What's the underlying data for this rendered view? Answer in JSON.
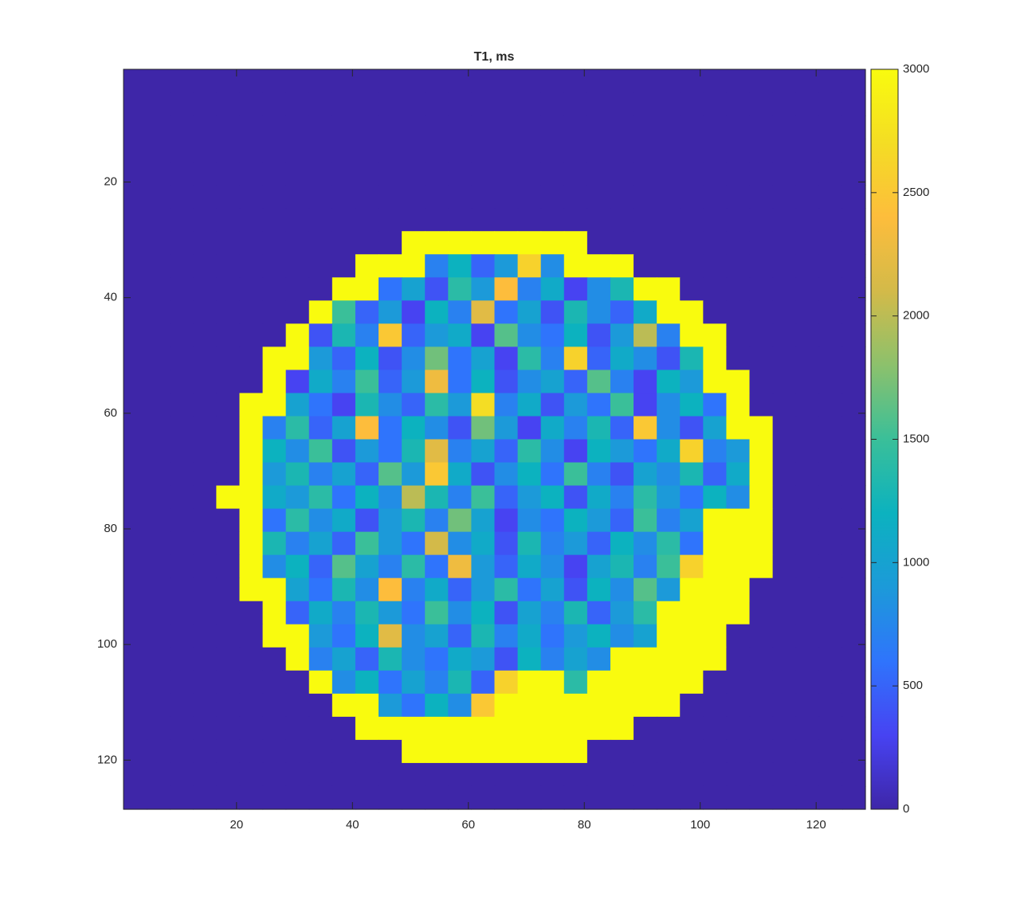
{
  "chart_data": {
    "type": "heatmap",
    "title": "T1, ms",
    "xlim": [
      0.5,
      128.5
    ],
    "ylim": [
      0.5,
      128.5
    ],
    "y_reversed": true,
    "xticks": [
      20,
      40,
      60,
      80,
      100,
      120
    ],
    "yticks": [
      20,
      40,
      60,
      80,
      100,
      120
    ],
    "clim": [
      0,
      3000
    ],
    "cticks": [
      0,
      500,
      1000,
      1500,
      2000,
      2500,
      3000
    ],
    "colormap": [
      "#3e26a8",
      "#4743f2",
      "#2f74fc",
      "#1c9ad9",
      "#0cb2bf",
      "#3abf99",
      "#8cc16c",
      "#d3ba49",
      "#fdbd3c",
      "#f4dd24",
      "#f9fb0e"
    ],
    "z": [
      [
        0,
        0,
        0,
        0,
        0,
        0,
        0,
        0,
        0,
        0,
        0,
        0,
        0,
        0,
        0,
        0,
        0,
        0,
        0,
        0,
        0,
        0,
        0,
        0,
        0,
        0,
        0,
        0,
        0,
        0,
        0,
        0
      ],
      [
        0,
        0,
        0,
        0,
        0,
        0,
        0,
        0,
        0,
        0,
        0,
        0,
        0,
        0,
        0,
        0,
        0,
        0,
        0,
        0,
        0,
        0,
        0,
        0,
        0,
        0,
        0,
        0,
        0,
        0,
        0,
        0
      ],
      [
        0,
        0,
        0,
        0,
        0,
        0,
        0,
        0,
        0,
        0,
        0,
        0,
        0,
        0,
        0,
        0,
        0,
        0,
        0,
        0,
        0,
        0,
        0,
        0,
        0,
        0,
        0,
        0,
        0,
        0,
        0,
        0
      ],
      [
        0,
        0,
        0,
        0,
        0,
        0,
        0,
        0,
        0,
        0,
        0,
        0,
        0,
        0,
        0,
        0,
        0,
        0,
        0,
        0,
        0,
        0,
        0,
        0,
        0,
        0,
        0,
        0,
        0,
        0,
        0,
        0
      ],
      [
        0,
        0,
        0,
        0,
        0,
        0,
        0,
        0,
        0,
        0,
        0,
        0,
        0,
        0,
        0,
        0,
        0,
        0,
        0,
        0,
        0,
        0,
        0,
        0,
        0,
        0,
        0,
        0,
        0,
        0,
        0,
        0
      ],
      [
        0,
        0,
        0,
        0,
        0,
        0,
        0,
        0,
        0,
        0,
        0,
        0,
        0,
        0,
        0,
        0,
        0,
        0,
        0,
        0,
        0,
        0,
        0,
        0,
        0,
        0,
        0,
        0,
        0,
        0,
        0,
        0
      ],
      [
        0,
        0,
        0,
        0,
        0,
        0,
        0,
        0,
        0,
        0,
        0,
        0,
        0,
        0,
        0,
        0,
        0,
        0,
        0,
        0,
        0,
        0,
        0,
        0,
        0,
        0,
        0,
        0,
        0,
        0,
        0,
        0
      ],
      [
        0,
        0,
        0,
        0,
        0,
        0,
        0,
        0,
        0,
        0,
        0,
        0,
        3000,
        3000,
        3000,
        3000,
        3000,
        3000,
        3000,
        3000,
        0,
        0,
        0,
        0,
        0,
        0,
        0,
        0,
        0,
        0,
        0,
        0
      ],
      [
        0,
        0,
        0,
        0,
        0,
        0,
        0,
        0,
        0,
        0,
        3000,
        3000,
        3000,
        700,
        1200,
        500,
        900,
        2600,
        800,
        3000,
        3000,
        3000,
        0,
        0,
        0,
        0,
        0,
        0,
        0,
        0,
        0,
        0
      ],
      [
        0,
        0,
        0,
        0,
        0,
        0,
        0,
        0,
        0,
        3000,
        3000,
        600,
        1000,
        400,
        1400,
        900,
        2400,
        700,
        1100,
        300,
        800,
        1300,
        3000,
        3000,
        0,
        0,
        0,
        0,
        0,
        0,
        0,
        0
      ],
      [
        0,
        0,
        0,
        0,
        0,
        0,
        0,
        0,
        3000,
        1500,
        500,
        900,
        300,
        1200,
        700,
        2200,
        600,
        1000,
        400,
        1300,
        800,
        500,
        1100,
        3000,
        3000,
        0,
        0,
        0,
        0,
        0,
        0,
        0
      ],
      [
        0,
        0,
        0,
        0,
        0,
        0,
        0,
        3000,
        400,
        1300,
        700,
        2500,
        500,
        900,
        1100,
        300,
        1600,
        800,
        600,
        1200,
        400,
        900,
        2000,
        700,
        3000,
        3000,
        0,
        0,
        0,
        0,
        0,
        0
      ],
      [
        0,
        0,
        0,
        0,
        0,
        0,
        3000,
        3000,
        900,
        500,
        1200,
        400,
        800,
        1700,
        600,
        1000,
        300,
        1400,
        700,
        2600,
        500,
        1100,
        800,
        400,
        1300,
        3000,
        0,
        0,
        0,
        0,
        0,
        0
      ],
      [
        0,
        0,
        0,
        0,
        0,
        0,
        3000,
        300,
        1100,
        700,
        1500,
        500,
        900,
        2300,
        600,
        1200,
        400,
        800,
        1000,
        500,
        1600,
        700,
        300,
        1200,
        900,
        3000,
        3000,
        0,
        0,
        0,
        0,
        0
      ],
      [
        0,
        0,
        0,
        0,
        0,
        3000,
        3000,
        1000,
        600,
        300,
        1300,
        800,
        500,
        1400,
        900,
        2700,
        700,
        1100,
        400,
        900,
        600,
        1500,
        300,
        800,
        1200,
        600,
        3000,
        0,
        0,
        0,
        0,
        0
      ],
      [
        0,
        0,
        0,
        0,
        0,
        3000,
        700,
        1400,
        500,
        1000,
        2400,
        600,
        1200,
        800,
        400,
        1700,
        900,
        300,
        1100,
        700,
        1300,
        500,
        2500,
        800,
        400,
        1000,
        3000,
        3000,
        0,
        0,
        0,
        0
      ],
      [
        0,
        0,
        0,
        0,
        0,
        3000,
        1200,
        800,
        1500,
        400,
        900,
        600,
        1300,
        2200,
        700,
        1000,
        500,
        1400,
        800,
        300,
        1200,
        900,
        600,
        1100,
        2600,
        700,
        900,
        3000,
        0,
        0,
        0,
        0
      ],
      [
        0,
        0,
        0,
        0,
        0,
        3000,
        900,
        1300,
        700,
        1000,
        500,
        1600,
        900,
        2500,
        1100,
        400,
        800,
        1200,
        600,
        1500,
        700,
        400,
        1000,
        800,
        1300,
        500,
        1100,
        3000,
        0,
        0,
        0,
        0
      ],
      [
        0,
        0,
        0,
        0,
        3000,
        3000,
        1100,
        900,
        1400,
        600,
        1200,
        800,
        2000,
        1300,
        700,
        1500,
        500,
        900,
        1200,
        400,
        1100,
        700,
        1400,
        900,
        600,
        1200,
        800,
        3000,
        0,
        0,
        0,
        0
      ],
      [
        0,
        0,
        0,
        0,
        0,
        3000,
        600,
        1400,
        800,
        1100,
        400,
        900,
        1300,
        700,
        1700,
        1000,
        300,
        800,
        600,
        1200,
        900,
        500,
        1500,
        700,
        1000,
        3000,
        3000,
        3000,
        0,
        0,
        0,
        0
      ],
      [
        0,
        0,
        0,
        0,
        0,
        3000,
        1300,
        700,
        1000,
        500,
        1500,
        900,
        600,
        2100,
        800,
        1100,
        400,
        1300,
        700,
        900,
        500,
        1200,
        800,
        1400,
        600,
        3000,
        3000,
        3000,
        0,
        0,
        0,
        0
      ],
      [
        0,
        0,
        0,
        0,
        0,
        3000,
        800,
        1200,
        500,
        1600,
        1000,
        700,
        1400,
        600,
        2300,
        900,
        500,
        1100,
        800,
        300,
        1000,
        1300,
        700,
        1500,
        2600,
        3000,
        3000,
        3000,
        0,
        0,
        0,
        0
      ],
      [
        0,
        0,
        0,
        0,
        0,
        3000,
        3000,
        1000,
        600,
        1300,
        800,
        2400,
        700,
        1100,
        500,
        900,
        1400,
        600,
        1000,
        400,
        1200,
        800,
        1600,
        900,
        3000,
        3000,
        3000,
        0,
        0,
        0,
        0,
        0
      ],
      [
        0,
        0,
        0,
        0,
        0,
        0,
        3000,
        500,
        1100,
        700,
        1300,
        900,
        600,
        1500,
        800,
        1200,
        400,
        1000,
        700,
        1300,
        500,
        900,
        1400,
        3000,
        3000,
        3000,
        3000,
        0,
        0,
        0,
        0,
        0
      ],
      [
        0,
        0,
        0,
        0,
        0,
        0,
        3000,
        3000,
        900,
        600,
        1200,
        2200,
        800,
        1000,
        500,
        1300,
        700,
        1100,
        600,
        900,
        1200,
        800,
        1000,
        3000,
        3000,
        3000,
        0,
        0,
        0,
        0,
        0,
        0
      ],
      [
        0,
        0,
        0,
        0,
        0,
        0,
        0,
        3000,
        700,
        1000,
        500,
        1300,
        800,
        600,
        1100,
        900,
        400,
        1200,
        700,
        1000,
        800,
        3000,
        3000,
        3000,
        3000,
        3000,
        0,
        0,
        0,
        0,
        0,
        0
      ],
      [
        0,
        0,
        0,
        0,
        0,
        0,
        0,
        0,
        3000,
        800,
        1200,
        600,
        1000,
        700,
        1300,
        500,
        2600,
        3000,
        3000,
        1400,
        3000,
        3000,
        3000,
        3000,
        3000,
        0,
        0,
        0,
        0,
        0,
        0,
        0
      ],
      [
        0,
        0,
        0,
        0,
        0,
        0,
        0,
        0,
        0,
        3000,
        3000,
        900,
        600,
        1200,
        800,
        2500,
        3000,
        3000,
        3000,
        3000,
        3000,
        3000,
        3000,
        3000,
        0,
        0,
        0,
        0,
        0,
        0,
        0,
        0
      ],
      [
        0,
        0,
        0,
        0,
        0,
        0,
        0,
        0,
        0,
        0,
        3000,
        3000,
        3000,
        3000,
        3000,
        3000,
        3000,
        3000,
        3000,
        3000,
        3000,
        3000,
        0,
        0,
        0,
        0,
        0,
        0,
        0,
        0,
        0,
        0
      ],
      [
        0,
        0,
        0,
        0,
        0,
        0,
        0,
        0,
        0,
        0,
        0,
        0,
        3000,
        3000,
        3000,
        3000,
        3000,
        3000,
        3000,
        3000,
        0,
        0,
        0,
        0,
        0,
        0,
        0,
        0,
        0,
        0,
        0,
        0
      ],
      [
        0,
        0,
        0,
        0,
        0,
        0,
        0,
        0,
        0,
        0,
        0,
        0,
        0,
        0,
        0,
        0,
        0,
        0,
        0,
        0,
        0,
        0,
        0,
        0,
        0,
        0,
        0,
        0,
        0,
        0,
        0,
        0
      ],
      [
        0,
        0,
        0,
        0,
        0,
        0,
        0,
        0,
        0,
        0,
        0,
        0,
        0,
        0,
        0,
        0,
        0,
        0,
        0,
        0,
        0,
        0,
        0,
        0,
        0,
        0,
        0,
        0,
        0,
        0,
        0,
        0
      ]
    ]
  }
}
